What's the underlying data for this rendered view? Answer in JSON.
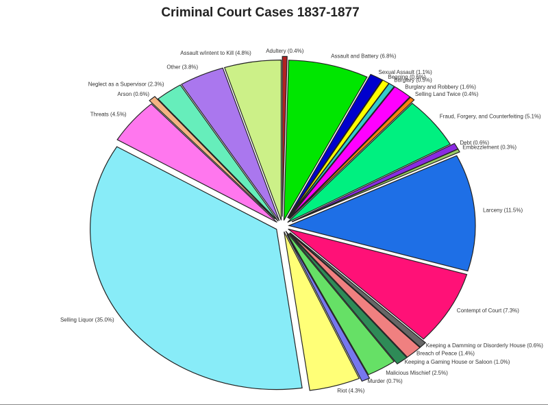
{
  "chart_data": {
    "type": "pie",
    "title": "Criminal Court Cases 1837-1877",
    "exploded": true,
    "slices": [
      {
        "label": "Adultery (0.4%)",
        "value": 0.4,
        "color": "#b22222"
      },
      {
        "label": "Assault and Battery (6.8%)",
        "value": 6.8,
        "color": "#00e600"
      },
      {
        "label": "Sexual Assault (1.1%)",
        "value": 1.1,
        "color": "#0000cc"
      },
      {
        "label": "Begging (0.6%)",
        "value": 0.6,
        "color": "#ffff00"
      },
      {
        "label": "Burglary (0.5%)",
        "value": 0.5,
        "color": "#33cccc"
      },
      {
        "label": "Burglary and Robbery (1.6%)",
        "value": 1.6,
        "color": "#ff00ff"
      },
      {
        "label": "Selling Land Twice (0.4%)",
        "value": 0.4,
        "color": "#ff7f0e"
      },
      {
        "label": "Fraud, Forgery, and Counterfeiting (5.1%)",
        "value": 5.1,
        "color": "#00f080"
      },
      {
        "label": "Debt (0.6%)",
        "value": 0.6,
        "color": "#8a2be2"
      },
      {
        "label": "Embezzlement (0.3%)",
        "value": 0.3,
        "color": "#99cc66"
      },
      {
        "label": "Larceny (11.5%)",
        "value": 11.5,
        "color": "#1e6fe6"
      },
      {
        "label": "Contempt of Court (7.3%)",
        "value": 7.3,
        "color": "#ff1177"
      },
      {
        "label": "Keeping a Damming or Disorderly House (0.6%)",
        "value": 0.6,
        "color": "#666666"
      },
      {
        "label": "Breach of Peace (1.4%)",
        "value": 1.4,
        "color": "#f08080"
      },
      {
        "label": "Keeping a Gaming House or Saloon (1.0%)",
        "value": 1.0,
        "color": "#2e8b57"
      },
      {
        "label": "Malicious Mischief (2.5%)",
        "value": 2.5,
        "color": "#66e066"
      },
      {
        "label": "Murder (0.7%)",
        "value": 0.7,
        "color": "#7777ee"
      },
      {
        "label": "Riot (4.3%)",
        "value": 4.3,
        "color": "#ffff77"
      },
      {
        "label": "Selling Liquor (35.0%)",
        "value": 35.0,
        "color": "#88ecf8"
      },
      {
        "label": "Threats (4.5%)",
        "value": 4.5,
        "color": "#ff77ee"
      },
      {
        "label": "Arson (0.6%)",
        "value": 0.6,
        "color": "#f4b483"
      },
      {
        "label": "Neglect as a Supervisor (2.3%)",
        "value": 2.3,
        "color": "#66eebb"
      },
      {
        "label": "Other (3.8%)",
        "value": 3.8,
        "color": "#aa77ee"
      },
      {
        "label": "Assault w/intent to Kill (4.8%)",
        "value": 4.8,
        "color": "#ccf088"
      }
    ]
  }
}
